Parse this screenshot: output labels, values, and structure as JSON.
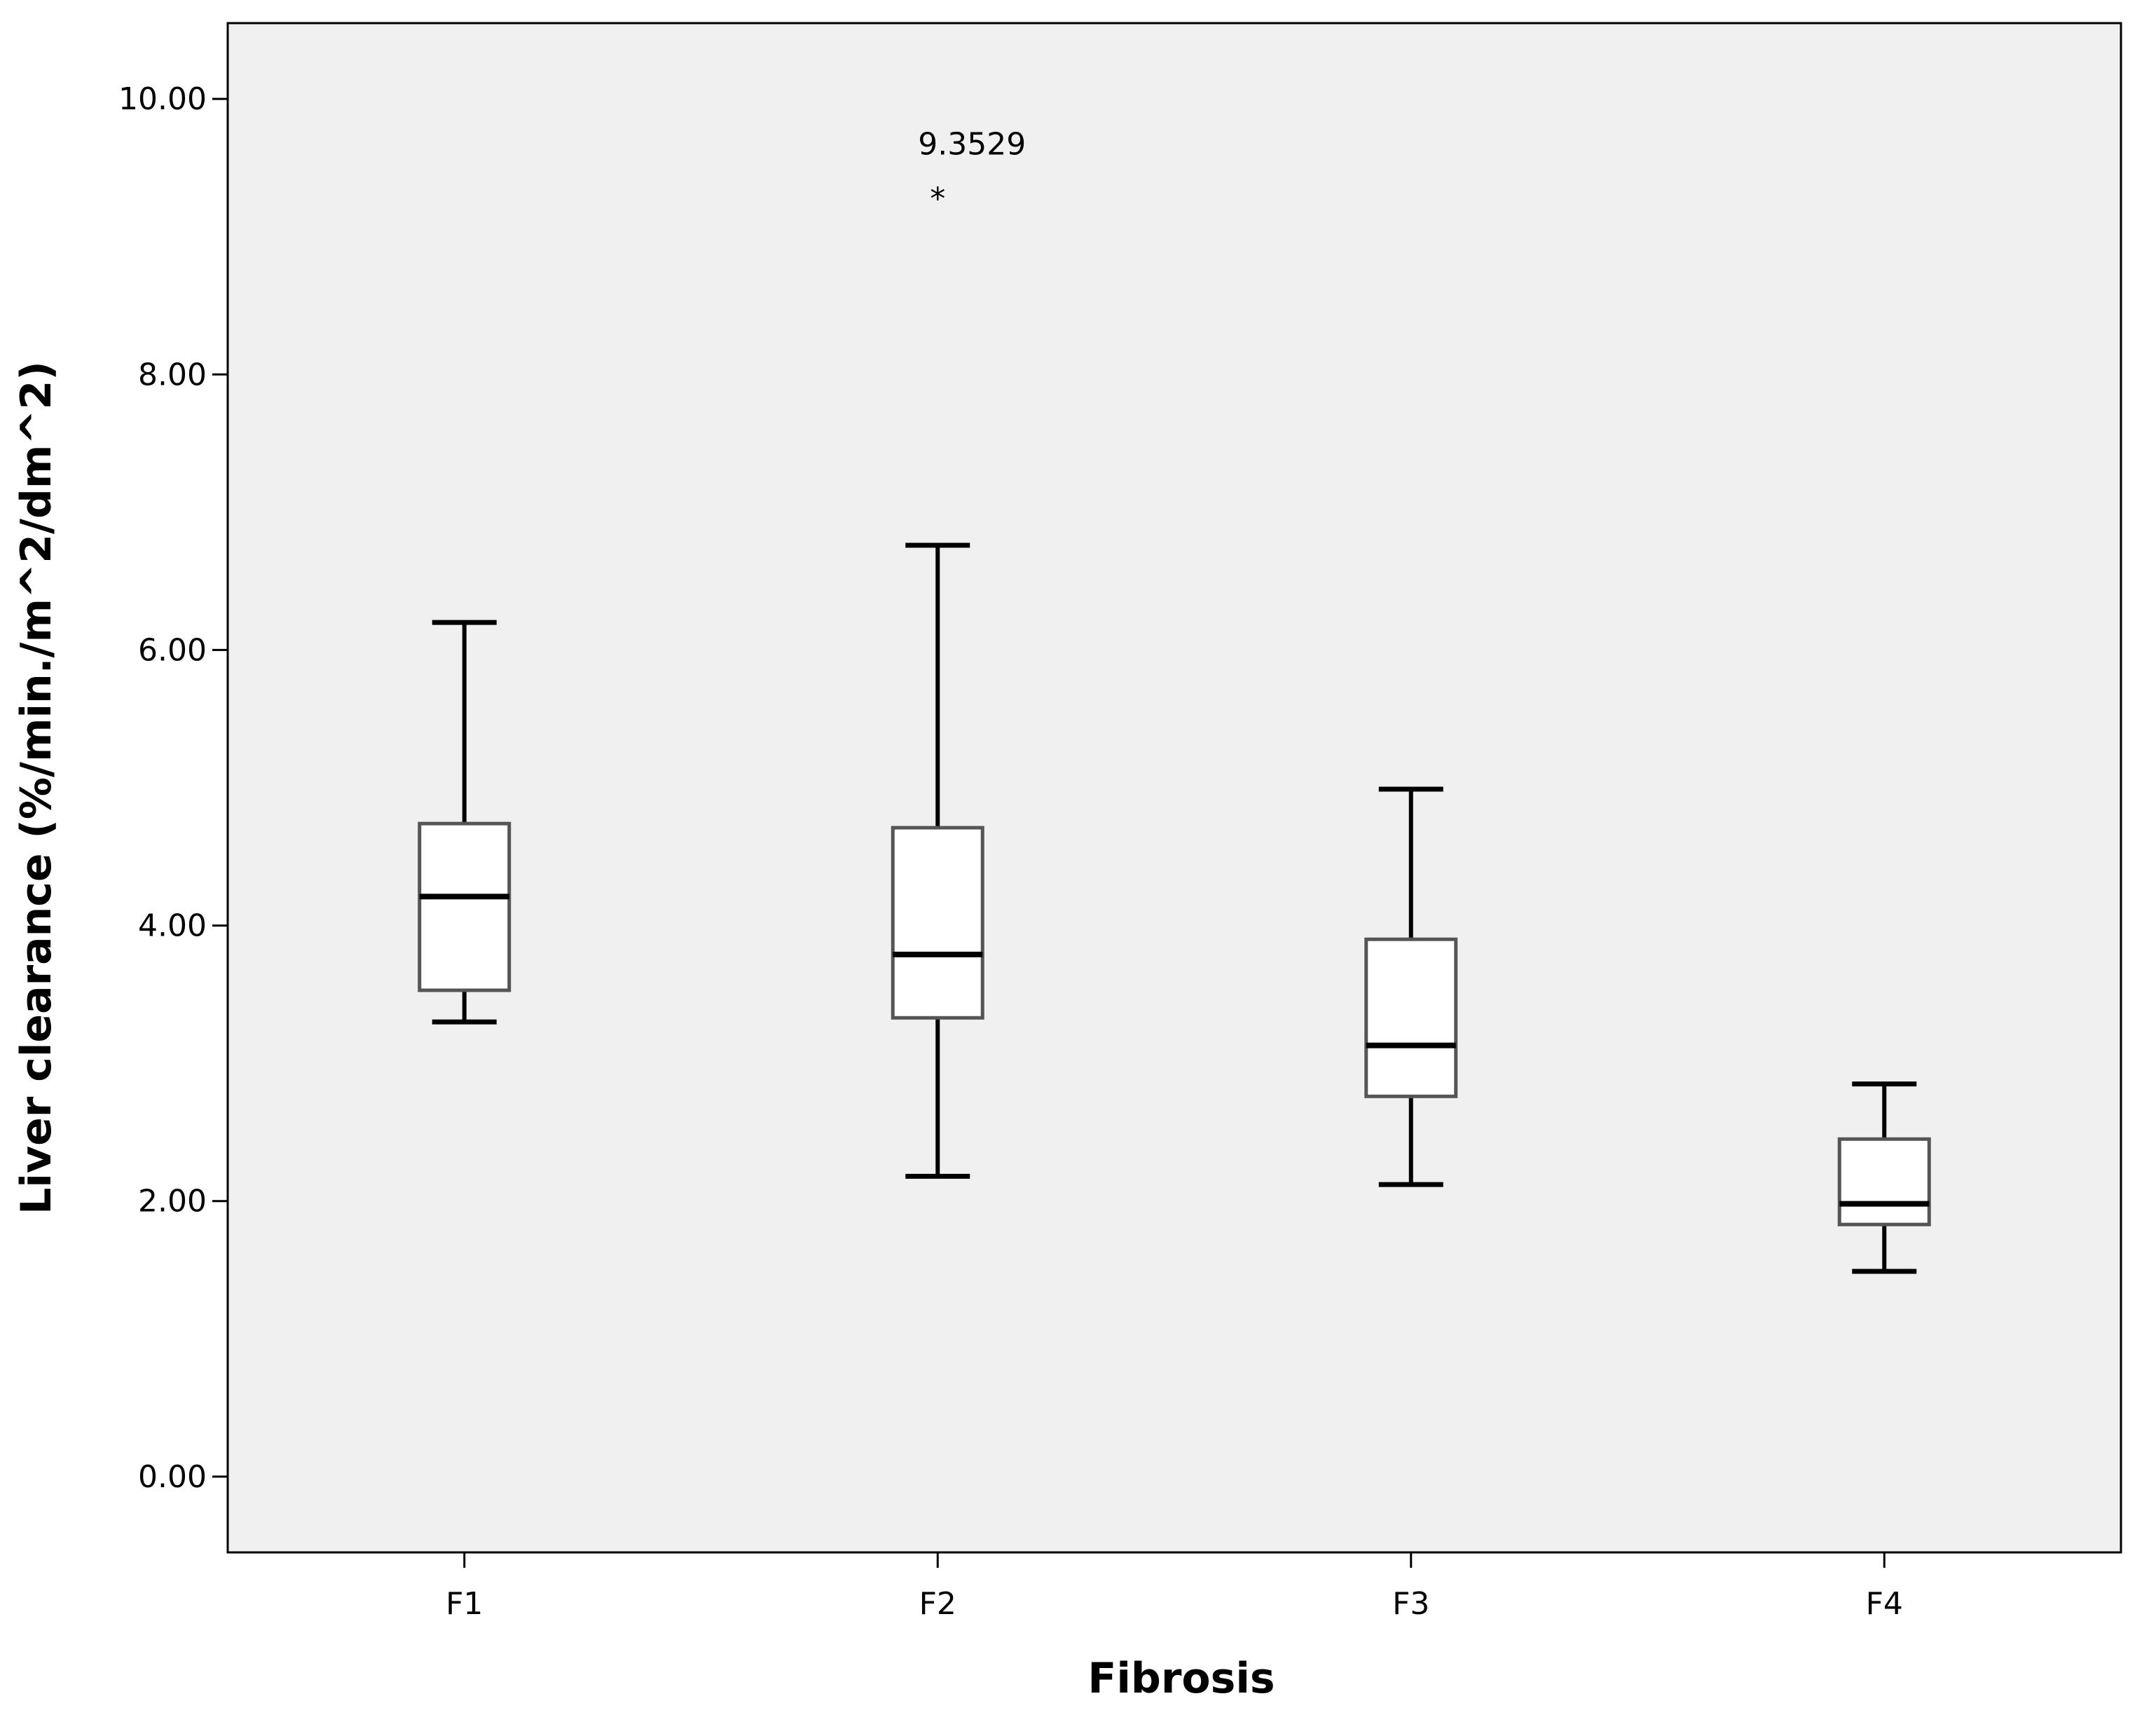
{
  "chart_data": {
    "type": "boxplot",
    "title": "",
    "xlabel": "Fibrosis",
    "ylabel": "Liver clearance (%/min./m^2/dm^2)",
    "ylim": [
      -0.55,
      10.55
    ],
    "yticks": [
      0,
      2,
      4,
      6,
      8,
      10
    ],
    "ytick_labels": [
      "0.00",
      "2.00",
      "4.00",
      "6.00",
      "8.00",
      "10.00"
    ],
    "grid": false,
    "background": "#f0f0f0",
    "box_fill": "#ffffff",
    "line_color": "#000000",
    "categories": [
      "F1",
      "F2",
      "F3",
      "F4"
    ],
    "boxes": [
      {
        "category": "F1",
        "whisker_low": 3.3,
        "q1": 3.53,
        "median": 4.21,
        "q3": 4.74,
        "whisker_high": 6.2,
        "outliers": []
      },
      {
        "category": "F2",
        "whisker_low": 2.18,
        "q1": 3.33,
        "median": 3.79,
        "q3": 4.71,
        "whisker_high": 6.76,
        "outliers": [
          {
            "value": 9.3529,
            "label": "9.3529",
            "marker": "*"
          }
        ]
      },
      {
        "category": "F3",
        "whisker_low": 2.12,
        "q1": 2.76,
        "median": 3.13,
        "q3": 3.9,
        "whisker_high": 4.99,
        "outliers": []
      },
      {
        "category": "F4",
        "whisker_low": 1.49,
        "q1": 1.83,
        "median": 1.98,
        "q3": 2.45,
        "whisker_high": 2.85,
        "outliers": []
      }
    ]
  }
}
